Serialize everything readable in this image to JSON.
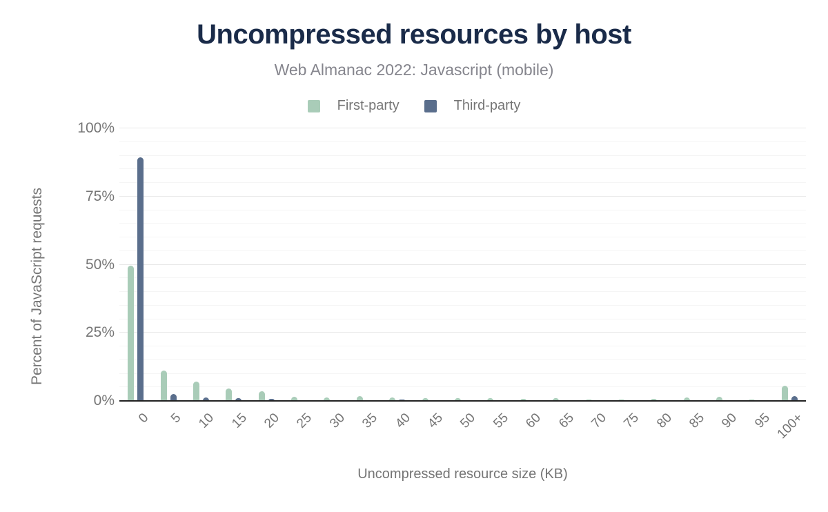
{
  "chart_data": {
    "type": "bar",
    "title": "Uncompressed resources by host",
    "subtitle": "Web Almanac 2022: Javascript (mobile)",
    "xlabel": "Uncompressed resource size (KB)",
    "ylabel": "Percent of JavaScript requests",
    "ylim": [
      0,
      100
    ],
    "ytick_step_percent": 25,
    "minor_gridline_step_percent": 5,
    "grid": true,
    "legend_position": "top-center",
    "yticks": [
      {
        "value": 0,
        "label": "0%"
      },
      {
        "value": 25,
        "label": "25%"
      },
      {
        "value": 50,
        "label": "50%"
      },
      {
        "value": 75,
        "label": "75%"
      },
      {
        "value": 100,
        "label": "100%"
      }
    ],
    "categories": [
      "0",
      "5",
      "10",
      "15",
      "20",
      "25",
      "30",
      "35",
      "40",
      "45",
      "50",
      "55",
      "60",
      "65",
      "70",
      "75",
      "80",
      "85",
      "90",
      "95",
      "100+"
    ],
    "series": [
      {
        "name": "First-party",
        "color": "#a9ccb8",
        "values": [
          49.7,
          11.2,
          7.0,
          4.6,
          3.5,
          1.6,
          1.2,
          1.7,
          1.2,
          1.0,
          1.0,
          1.0,
          0.8,
          1.0,
          0.5,
          0.5,
          0.8,
          1.3,
          1.5,
          0.4,
          5.5
        ]
      },
      {
        "name": "Third-party",
        "color": "#5a6e8c",
        "values": [
          89.3,
          2.6,
          1.3,
          0.9,
          0.7,
          0.3,
          0.3,
          0.3,
          0.5,
          0.3,
          0.3,
          0.3,
          0.3,
          0.3,
          0.3,
          0.3,
          0.3,
          0.3,
          0.3,
          0.3,
          1.9
        ]
      }
    ],
    "colors": {
      "title": "#1a2b49",
      "subtitle": "#85858d",
      "axis_text": "#757575",
      "axis_line": "#212121",
      "major_gridline": "#e8e8e8",
      "minor_gridline": "#f5f5f5",
      "background": "#ffffff"
    }
  }
}
